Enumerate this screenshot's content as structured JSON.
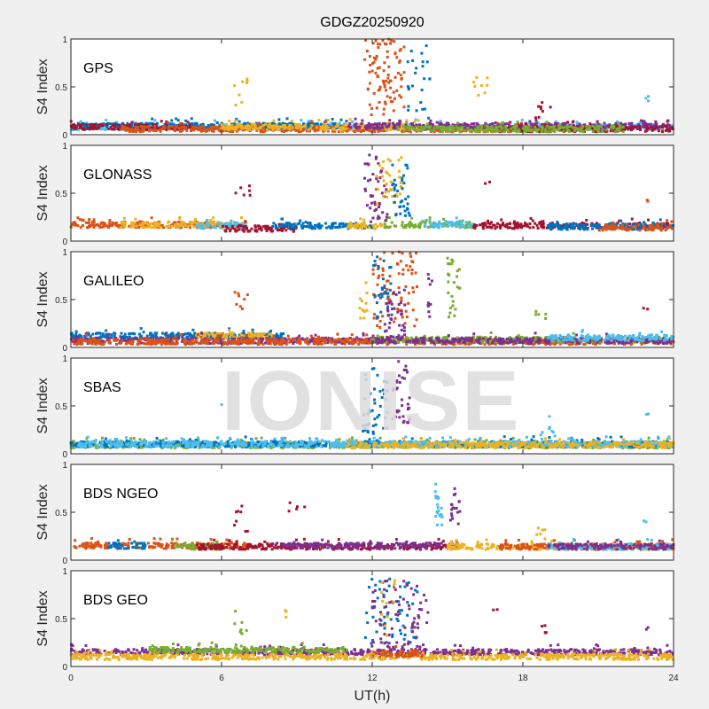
{
  "chart_data": {
    "type": "scatter",
    "title": "GDGZ20250920",
    "xlabel": "UT(h)",
    "ylabel": "S4 Index",
    "xlim": [
      0,
      24
    ],
    "ylim": [
      0,
      1
    ],
    "xticks": [
      "0",
      "6",
      "12",
      "18",
      "24"
    ],
    "yticks": [
      "0",
      "0.5",
      "1"
    ],
    "watermark": "IONISE",
    "colors": {
      "blue": "#0072BD",
      "orange": "#D95319",
      "yellow": "#EDB120",
      "purple": "#7E2F8E",
      "green": "#77AC30",
      "cyan": "#4DBEEE",
      "red": "#A2142F"
    },
    "panels": [
      {
        "label": "GPS",
        "baseline": [
          [
            "cyan",
            0,
            24,
            0.08
          ],
          [
            "blue",
            0,
            11,
            0.09
          ],
          [
            "red",
            0,
            5,
            0.08
          ],
          [
            "orange",
            2,
            20,
            0.06
          ],
          [
            "yellow",
            6,
            14,
            0.08
          ],
          [
            "purple",
            11,
            24,
            0.09
          ],
          [
            "red",
            17,
            24,
            0.06
          ],
          [
            "green",
            13,
            22,
            0.06
          ]
        ],
        "bursts": [
          [
            "orange",
            11.7,
            13.3,
            0.2,
            1.0,
            90
          ],
          [
            "blue",
            13.4,
            14.3,
            0.15,
            0.95,
            25
          ],
          [
            "yellow",
            6.5,
            7.1,
            0.3,
            0.6,
            8
          ],
          [
            "yellow",
            16.0,
            16.6,
            0.3,
            0.6,
            8
          ],
          [
            "red",
            18.5,
            19.1,
            0.15,
            0.35,
            8
          ],
          [
            "cyan",
            22.8,
            23.0,
            0.35,
            0.4,
            3
          ]
        ]
      },
      {
        "label": "GLONASS",
        "baseline": [
          [
            "orange",
            0,
            6,
            0.17
          ],
          [
            "yellow",
            2,
            7,
            0.17
          ],
          [
            "cyan",
            5,
            7,
            0.16
          ],
          [
            "red",
            6,
            9,
            0.13
          ],
          [
            "blue",
            8,
            12,
            0.16
          ],
          [
            "yellow",
            11,
            12.5,
            0.16
          ],
          [
            "green",
            12.5,
            16,
            0.17
          ],
          [
            "cyan",
            14,
            16,
            0.17
          ],
          [
            "red",
            16,
            24,
            0.16
          ],
          [
            "blue",
            19,
            24,
            0.15
          ],
          [
            "orange",
            21,
            24,
            0.14
          ]
        ],
        "bursts": [
          [
            "purple",
            11.7,
            12.6,
            0.2,
            0.9,
            45
          ],
          [
            "yellow",
            12.1,
            13.2,
            0.3,
            0.9,
            35
          ],
          [
            "blue",
            12.8,
            13.5,
            0.25,
            0.8,
            35
          ],
          [
            "red",
            6.5,
            7.2,
            0.45,
            0.6,
            6
          ],
          [
            "red",
            16.5,
            16.7,
            0.6,
            0.62,
            2
          ],
          [
            "orange",
            22.9,
            23.0,
            0.4,
            0.43,
            2
          ]
        ]
      },
      {
        "label": "GALILEO",
        "baseline": [
          [
            "blue",
            0,
            8.5,
            0.12
          ],
          [
            "yellow",
            5,
            8,
            0.12
          ],
          [
            "purple",
            0,
            12,
            0.07
          ],
          [
            "orange",
            0,
            24,
            0.06
          ],
          [
            "green",
            12,
            24,
            0.08
          ],
          [
            "purple",
            12,
            24,
            0.07
          ],
          [
            "cyan",
            19,
            24,
            0.1
          ]
        ],
        "bursts": [
          [
            "orange",
            12,
            13.8,
            0.2,
            1.0,
            80
          ],
          [
            "purple",
            12.5,
            13.3,
            0.1,
            0.6,
            40
          ],
          [
            "blue",
            12,
            12.8,
            0.3,
            0.95,
            30
          ],
          [
            "yellow",
            11.5,
            11.8,
            0.3,
            0.7,
            12
          ],
          [
            "green",
            15.0,
            15.5,
            0.3,
            0.95,
            25
          ],
          [
            "purple",
            14.2,
            14.4,
            0.3,
            0.8,
            10
          ],
          [
            "orange",
            6.5,
            7.1,
            0.35,
            0.6,
            8
          ],
          [
            "green",
            18.5,
            19,
            0.3,
            0.4,
            5
          ],
          [
            "red",
            22.8,
            23,
            0.38,
            0.42,
            2
          ]
        ]
      },
      {
        "label": "SBAS",
        "baseline": [
          [
            "green",
            0,
            24,
            0.09
          ],
          [
            "blue",
            0,
            24,
            0.1
          ],
          [
            "cyan",
            0,
            24,
            0.1
          ],
          [
            "yellow",
            11,
            24,
            0.09
          ]
        ],
        "bursts": [
          [
            "blue",
            11.6,
            12.6,
            0.15,
            0.9,
            45
          ],
          [
            "purple",
            12.8,
            13.5,
            0.3,
            1.0,
            35
          ],
          [
            "cyan",
            18.5,
            19.5,
            0.1,
            0.4,
            10
          ],
          [
            "cyan",
            22.9,
            23,
            0.38,
            0.42,
            2
          ],
          [
            "cyan",
            6,
            6.1,
            0.5,
            0.52,
            1
          ]
        ]
      },
      {
        "label": "BDS NGEO",
        "baseline": [
          [
            "orange",
            0,
            7,
            0.15
          ],
          [
            "blue",
            1.5,
            3,
            0.15
          ],
          [
            "green",
            4,
            6,
            0.14
          ],
          [
            "red",
            5,
            15,
            0.14
          ],
          [
            "purple",
            8,
            15.5,
            0.15
          ],
          [
            "yellow",
            15,
            24,
            0.14
          ],
          [
            "orange",
            17,
            24,
            0.14
          ],
          [
            "cyan",
            19,
            24,
            0.14
          ],
          [
            "purple",
            19,
            24,
            0.14
          ]
        ],
        "bursts": [
          [
            "cyan",
            14.5,
            14.8,
            0.3,
            0.8,
            20
          ],
          [
            "purple",
            15.1,
            15.5,
            0.35,
            0.75,
            18
          ],
          [
            "red",
            6.5,
            7.1,
            0.3,
            0.6,
            8
          ],
          [
            "red",
            8.5,
            9.5,
            0.5,
            0.65,
            5
          ],
          [
            "yellow",
            18.5,
            19,
            0.2,
            0.35,
            6
          ],
          [
            "cyan",
            22.8,
            23,
            0.38,
            0.42,
            2
          ]
        ]
      },
      {
        "label": "BDS GEO",
        "baseline": [
          [
            "purple",
            0,
            24,
            0.15
          ],
          [
            "yellow",
            0,
            24,
            0.1
          ],
          [
            "green",
            3,
            11,
            0.17
          ],
          [
            "orange",
            12,
            14,
            0.13
          ]
        ],
        "bursts": [
          [
            "blue",
            11.6,
            13.8,
            0.2,
            0.92,
            60
          ],
          [
            "purple",
            12,
            14.3,
            0.2,
            0.9,
            70
          ],
          [
            "yellow",
            12.3,
            12.9,
            0.3,
            0.9,
            12
          ],
          [
            "green",
            6.5,
            7.1,
            0.3,
            0.6,
            8
          ],
          [
            "yellow",
            8.5,
            8.6,
            0.5,
            0.67,
            3
          ],
          [
            "red",
            18.5,
            19,
            0.3,
            0.45,
            5
          ],
          [
            "red",
            16.8,
            17,
            0.57,
            0.6,
            2
          ],
          [
            "purple",
            22.8,
            23,
            0.38,
            0.42,
            2
          ]
        ]
      }
    ]
  }
}
